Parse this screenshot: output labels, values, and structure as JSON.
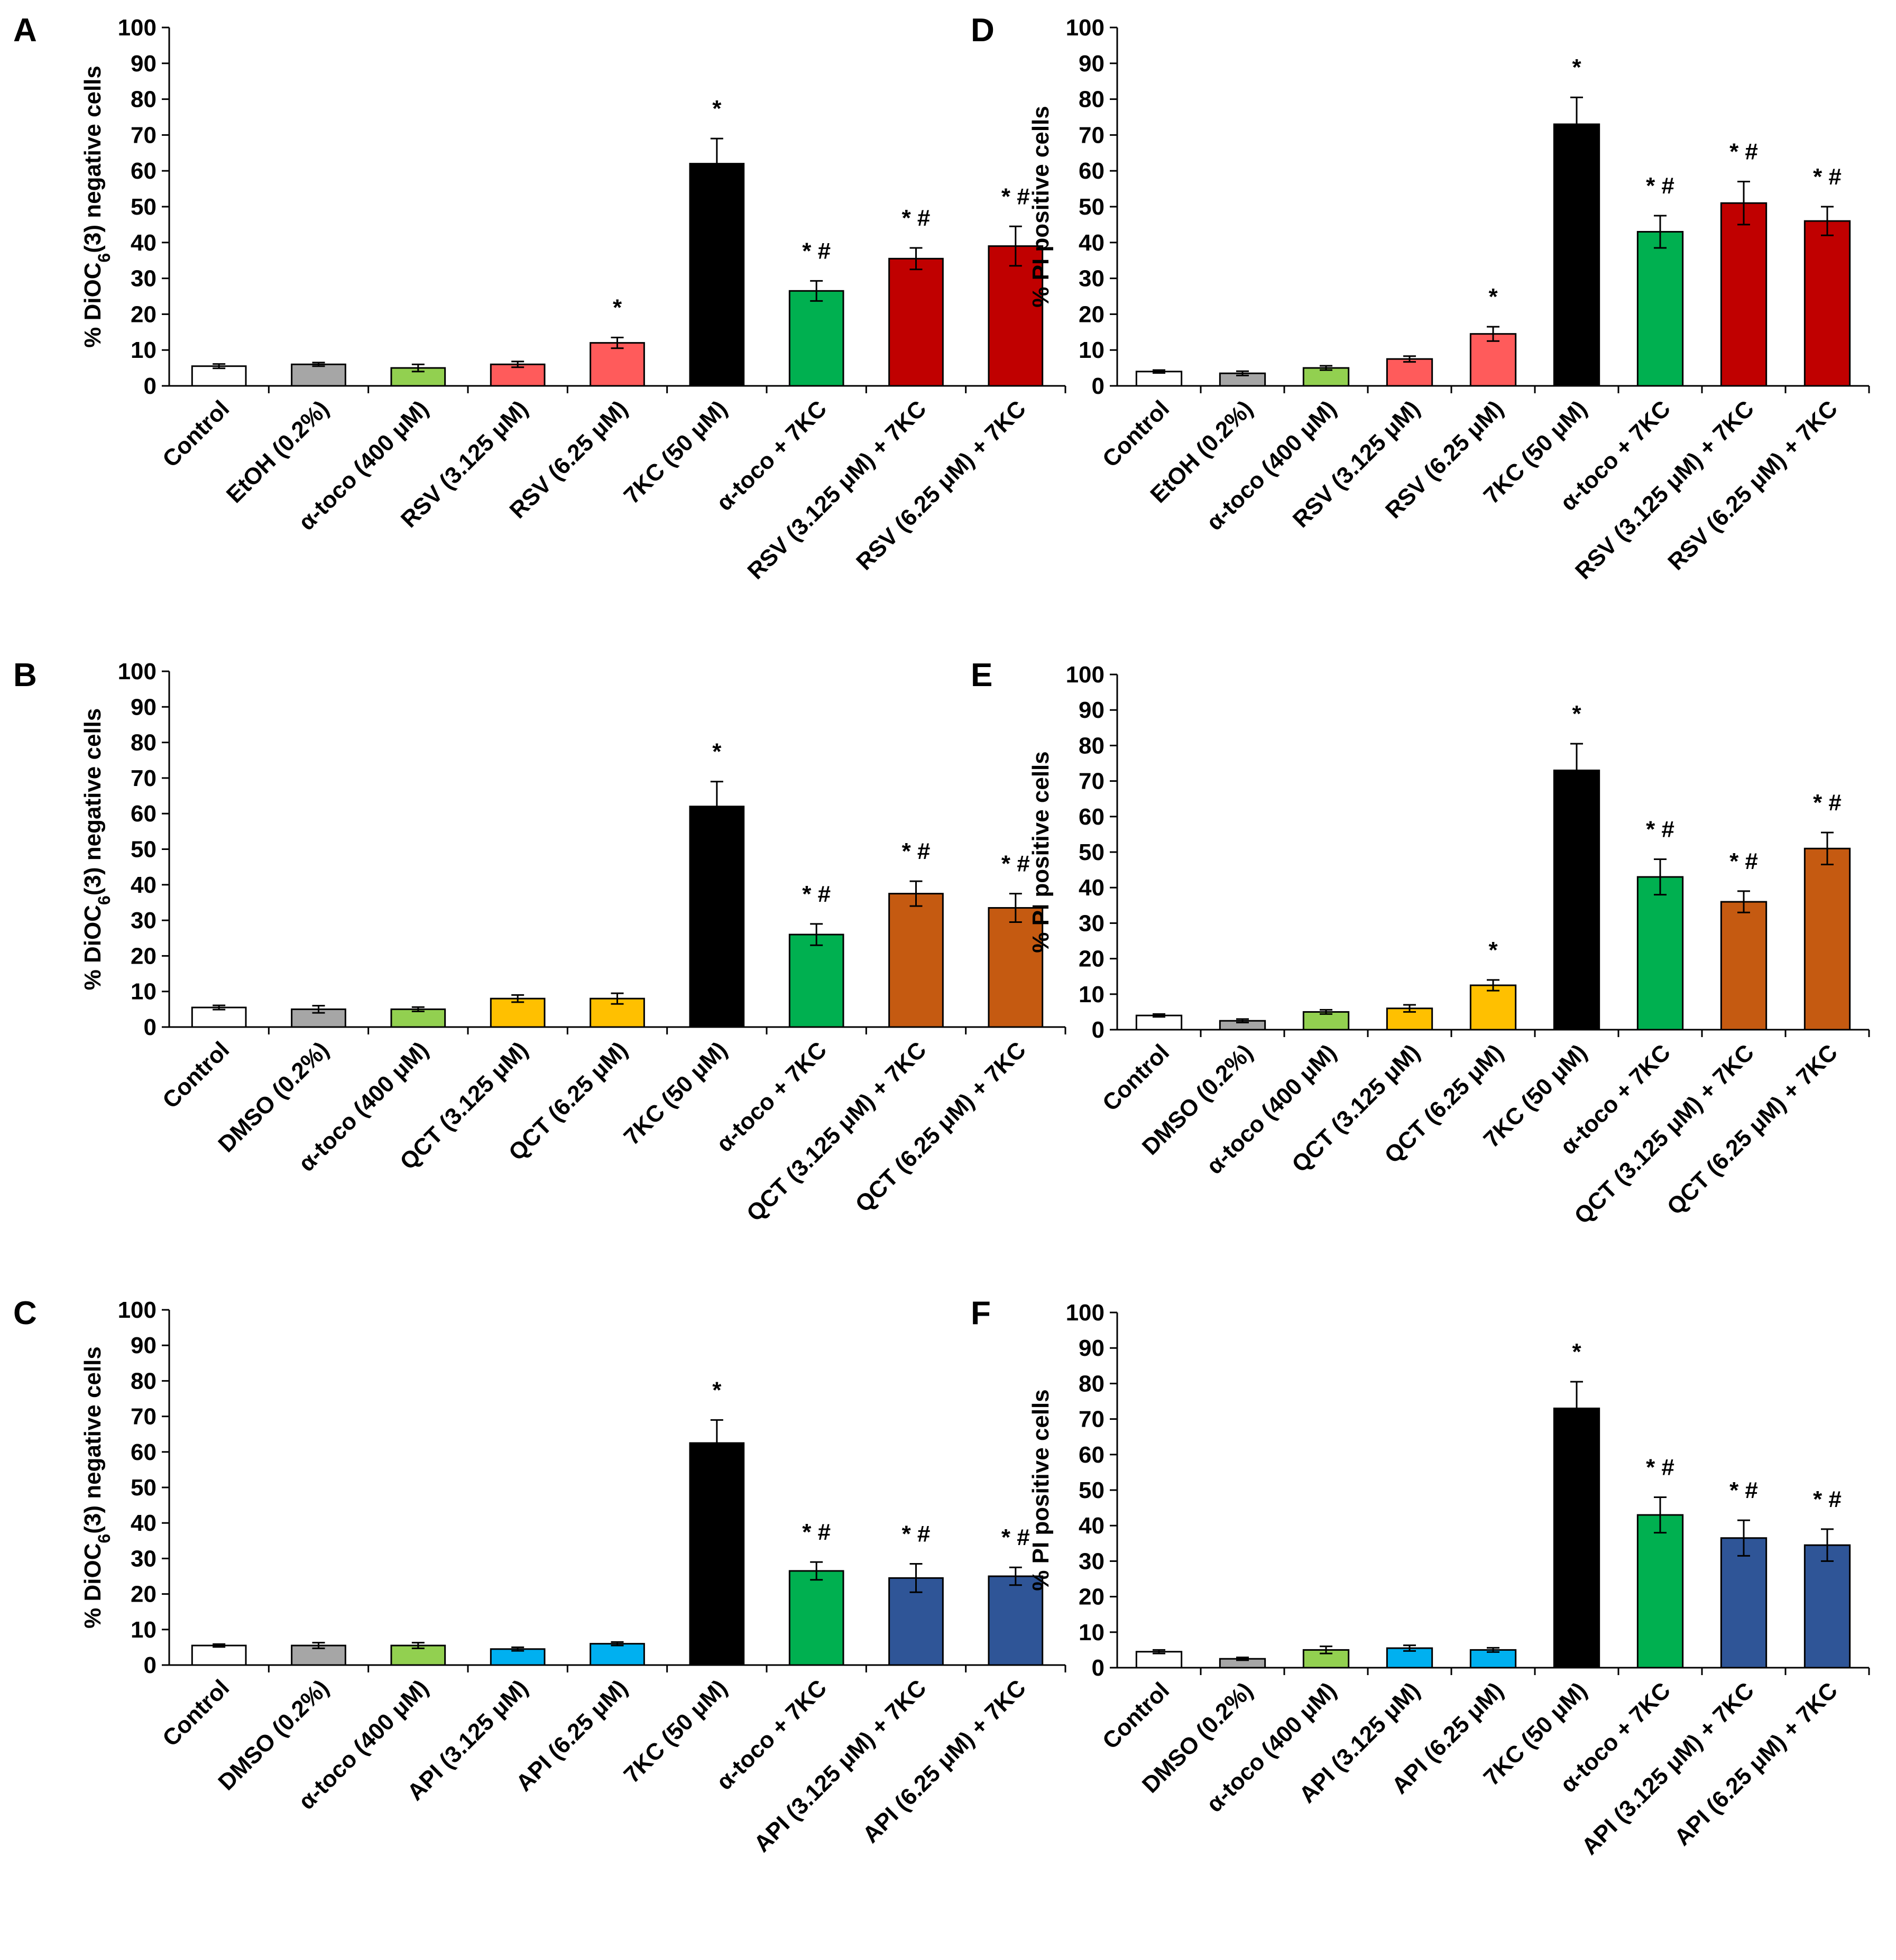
{
  "chart_data": [
    {
      "panel": "A",
      "type": "bar",
      "ylabel": "% DiOC6(3) negative cells",
      "ylabel_parts": {
        "pre": "% DiOC",
        "sub": "6",
        "post": "(3) negative cells"
      },
      "ylim": [
        0,
        100
      ],
      "yticks": [
        0,
        10,
        20,
        30,
        40,
        50,
        60,
        70,
        80,
        90,
        100
      ],
      "categories": [
        "Control",
        "EtOH (0.2%)",
        "α-toco (400 μM)",
        "RSV (3.125 μM)",
        "RSV (6.25 μM)",
        "7KC (50 μM)",
        "α-toco + 7KC",
        "RSV (3.125 μM) + 7KC",
        "RSV (6.25 μM) + 7KC"
      ],
      "values": [
        5.5,
        6,
        5,
        6,
        12,
        62,
        26.5,
        35.5,
        39
      ],
      "errors": [
        0.6,
        0.5,
        1.0,
        0.8,
        1.5,
        7,
        2.8,
        3.0,
        5.5
      ],
      "colors": [
        "#ffffff",
        "#a6a6a6",
        "#92d050",
        "#ff5b5b",
        "#ff5b5b",
        "#000000",
        "#00b050",
        "#c00000",
        "#c00000"
      ],
      "annotations": [
        "",
        "",
        "",
        "",
        "*",
        "*",
        "* #",
        "* #",
        "* #"
      ]
    },
    {
      "panel": "B",
      "type": "bar",
      "ylabel": "% DiOC6(3) negative cells",
      "ylabel_parts": {
        "pre": "% DiOC",
        "sub": "6",
        "post": "(3) negative cells"
      },
      "ylim": [
        0,
        100
      ],
      "yticks": [
        0,
        10,
        20,
        30,
        40,
        50,
        60,
        70,
        80,
        90,
        100
      ],
      "categories": [
        "Control",
        "DMSO (0.2%)",
        "α-toco (400 μM)",
        "QCT (3.125 μM)",
        "QCT (6.25 μM)",
        "7KC (50 μM)",
        "α-toco + 7KC",
        "QCT (3.125 μM) + 7KC",
        "QCT (6.25 μM) + 7KC"
      ],
      "values": [
        5.5,
        5,
        5,
        8,
        8,
        62,
        26,
        37.5,
        33.5
      ],
      "errors": [
        0.6,
        1.0,
        0.6,
        1.0,
        1.5,
        7,
        3,
        3.5,
        4
      ],
      "colors": [
        "#ffffff",
        "#a6a6a6",
        "#92d050",
        "#ffc000",
        "#ffc000",
        "#000000",
        "#00b050",
        "#c55a11",
        "#c55a11"
      ],
      "annotations": [
        "",
        "",
        "",
        "",
        "",
        "*",
        "* #",
        "* #",
        "* #"
      ]
    },
    {
      "panel": "C",
      "type": "bar",
      "ylabel": "% DiOC6(3) negative cells",
      "ylabel_parts": {
        "pre": "% DiOC",
        "sub": "6",
        "post": "(3) negative cells"
      },
      "ylim": [
        0,
        100
      ],
      "yticks": [
        0,
        10,
        20,
        30,
        40,
        50,
        60,
        70,
        80,
        90,
        100
      ],
      "categories": [
        "Control",
        "DMSO (0.2%)",
        "α-toco (400 μM)",
        "API (3.125 μM)",
        "API (6.25 μM)",
        "7KC (50 μM)",
        "α-toco + 7KC",
        "API (3.125 μM) + 7KC",
        "API (6.25 μM) + 7KC"
      ],
      "values": [
        5.5,
        5.5,
        5.5,
        4.5,
        6,
        62.5,
        26.5,
        24.5,
        25
      ],
      "errors": [
        0.4,
        0.8,
        0.8,
        0.5,
        0.5,
        6.5,
        2.5,
        4,
        2.5
      ],
      "colors": [
        "#ffffff",
        "#a6a6a6",
        "#92d050",
        "#00b0f0",
        "#00b0f0",
        "#000000",
        "#00b050",
        "#2f5597",
        "#2f5597"
      ],
      "annotations": [
        "",
        "",
        "",
        "",
        "",
        "*",
        "* #",
        "* #",
        "* #"
      ]
    },
    {
      "panel": "D",
      "type": "bar",
      "ylabel": "% PI positive cells",
      "ylim": [
        0,
        100
      ],
      "yticks": [
        0,
        10,
        20,
        30,
        40,
        50,
        60,
        70,
        80,
        90,
        100
      ],
      "categories": [
        "Control",
        "EtOH (0.2%)",
        "α-toco (400 μM)",
        "RSV (3.125 μM)",
        "RSV (6.25 μM)",
        "7KC (50 μM)",
        "α-toco + 7KC",
        "RSV (3.125 μM) + 7KC",
        "RSV (6.25 μM) + 7KC"
      ],
      "values": [
        4,
        3.5,
        5,
        7.5,
        14.5,
        73,
        43,
        51,
        46
      ],
      "errors": [
        0.4,
        0.6,
        0.6,
        0.8,
        2,
        7.5,
        4.5,
        6,
        4
      ],
      "colors": [
        "#ffffff",
        "#a6a6a6",
        "#92d050",
        "#ff5b5b",
        "#ff5b5b",
        "#000000",
        "#00b050",
        "#c00000",
        "#c00000"
      ],
      "annotations": [
        "",
        "",
        "",
        "",
        "*",
        "*",
        "* #",
        "* #",
        "* #"
      ]
    },
    {
      "panel": "E",
      "type": "bar",
      "ylabel": "% PI positive cells",
      "ylim": [
        0,
        100
      ],
      "yticks": [
        0,
        10,
        20,
        30,
        40,
        50,
        60,
        70,
        80,
        90,
        100
      ],
      "categories": [
        "Control",
        "DMSO (0.2%)",
        "α-toco (400 μM)",
        "QCT (3.125 μM)",
        "QCT (6.25 μM)",
        "7KC (50 μM)",
        "α-toco + 7KC",
        "QCT (3.125 μM) + 7KC",
        "QCT (6.25 μM) + 7KC"
      ],
      "values": [
        4,
        2.5,
        5,
        6,
        12.5,
        73,
        43,
        36,
        51
      ],
      "errors": [
        0.4,
        0.5,
        0.6,
        1.0,
        1.5,
        7.5,
        5,
        3,
        4.5
      ],
      "colors": [
        "#ffffff",
        "#a6a6a6",
        "#92d050",
        "#ffc000",
        "#ffc000",
        "#000000",
        "#00b050",
        "#c55a11",
        "#c55a11"
      ],
      "annotations": [
        "",
        "",
        "",
        "",
        "*",
        "*",
        "* #",
        "* #",
        "* #"
      ]
    },
    {
      "panel": "F",
      "type": "bar",
      "ylabel": "% PI positive cells",
      "ylim": [
        0,
        100
      ],
      "yticks": [
        0,
        10,
        20,
        30,
        40,
        50,
        60,
        70,
        80,
        90,
        100
      ],
      "categories": [
        "Control",
        "DMSO (0.2%)",
        "α-toco (400 μM)",
        "API (3.125 μM)",
        "API (6.25 μM)",
        "7KC (50 μM)",
        "α-toco + 7KC",
        "API (3.125 μM) + 7KC",
        "API (6.25 μM) + 7KC"
      ],
      "values": [
        4.5,
        2.5,
        5,
        5.5,
        5,
        73,
        43,
        36.5,
        34.5
      ],
      "errors": [
        0.5,
        0.4,
        1.0,
        0.8,
        0.6,
        7.5,
        5,
        5,
        4.5
      ],
      "colors": [
        "#ffffff",
        "#a6a6a6",
        "#92d050",
        "#00b0f0",
        "#00b0f0",
        "#000000",
        "#00b050",
        "#2f5597",
        "#2f5597"
      ],
      "annotations": [
        "",
        "",
        "",
        "",
        "",
        "*",
        "* #",
        "* #",
        "* #"
      ]
    }
  ]
}
